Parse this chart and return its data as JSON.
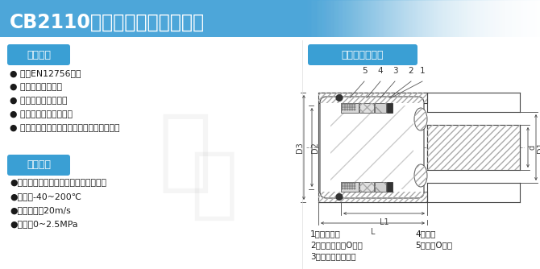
{
  "title": "CB2110型金属波纹管机械密封",
  "title_bg_color": "#4da6d9",
  "title_text_color": "white",
  "bg_color": "white",
  "section1_label": "结构特点",
  "section2_label": "适用工况",
  "section3_label": "主要零部件名称",
  "section_label_bg": "#3a9fd4",
  "section_label_color": "white",
  "features": [
    "● 符合EN12756标准",
    "● 单端面金属波纹管",
    "● 结构紧凑，密封可靠",
    "● 广泛用于高、低温介质",
    "● 广泛用于泵、反应釜、离心机等旋转轴密封"
  ],
  "conditions": [
    "●介质：用于中压、高低温及腐蚀性介质",
    "●温度：-40~200℃",
    "●线速度：＜20m/s",
    "●压力：0~2.5MPa"
  ],
  "parts_col1": [
    "1、紧定螺钉",
    "2、金属波纹管O形圈",
    "3、金属波纹管组件"
  ],
  "parts_col2": [
    "4、静环",
    "5、静环O形圈"
  ],
  "text_color": "#1a1a1a",
  "part_numbers": [
    "5",
    "4",
    "3",
    "2",
    "1"
  ]
}
